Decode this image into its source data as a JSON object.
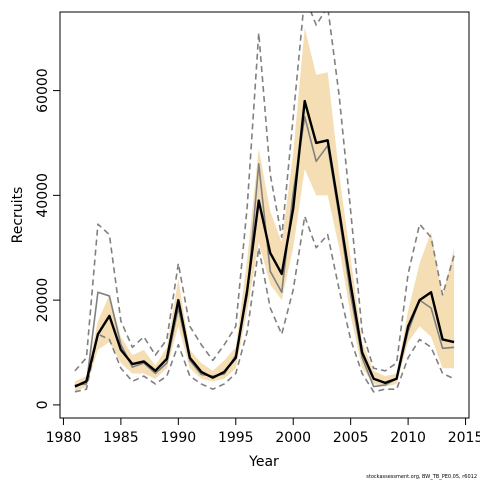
{
  "chart_data": {
    "type": "line",
    "xlabel": "Year",
    "ylabel": "Recruits",
    "credit": "stockassessment.org, BW_TB_PE0.05, r6012",
    "xlim": [
      1981,
      2015
    ],
    "ylim": [
      0,
      75000
    ],
    "xticks": [
      1980,
      1985,
      1990,
      1995,
      2000,
      2005,
      2010,
      2015
    ],
    "yticks": [
      0,
      20000,
      40000,
      60000
    ],
    "grid": false,
    "colors": {
      "ribbon": "#f5deb3",
      "estimate": "#000000",
      "comparison": "#808080",
      "interval": "#808080"
    },
    "x": [
      1981,
      1982,
      1983,
      1984,
      1985,
      1986,
      1987,
      1988,
      1989,
      1990,
      1991,
      1992,
      1993,
      1994,
      1995,
      1996,
      1997,
      1998,
      1999,
      2000,
      2001,
      2002,
      2003,
      2004,
      2005,
      2006,
      2007,
      2008,
      2009,
      2010,
      2011,
      2012,
      2013,
      2014
    ],
    "series": [
      {
        "role": "ribbon",
        "upper": [
          4500,
          5500,
          16000,
          21000,
          13000,
          9500,
          10500,
          7500,
          11000,
          24000,
          10500,
          8000,
          6500,
          8500,
          11000,
          28000,
          49000,
          37000,
          31000,
          48000,
          72000,
          63000,
          63500,
          44000,
          28000,
          12000,
          6500,
          5500,
          6000,
          18000,
          27000,
          33000,
          20500,
          30000
        ],
        "lower": [
          2500,
          3500,
          10500,
          12000,
          8000,
          6000,
          6000,
          5000,
          7000,
          15000,
          7000,
          5000,
          4500,
          5000,
          7000,
          18000,
          31000,
          23000,
          20000,
          30000,
          45000,
          40000,
          40000,
          30000,
          17000,
          7000,
          4000,
          3500,
          4000,
          12000,
          15000,
          13000,
          7000,
          7000
        ]
      },
      {
        "role": "estimate",
        "values": [
          3500,
          4500,
          13500,
          17000,
          10500,
          7800,
          8300,
          6500,
          8800,
          20000,
          9000,
          6300,
          5200,
          6300,
          9000,
          22000,
          39000,
          29000,
          25000,
          37500,
          58000,
          50000,
          50500,
          37000,
          23000,
          10000,
          5000,
          4200,
          5000,
          15000,
          20000,
          21500,
          12500,
          12000
        ]
      },
      {
        "role": "comparison",
        "values": [
          3800,
          4000,
          21500,
          20800,
          11500,
          7200,
          8000,
          6000,
          8000,
          18500,
          8500,
          5800,
          5500,
          5900,
          9500,
          21000,
          46000,
          25500,
          21500,
          40500,
          55000,
          46500,
          49500,
          36000,
          21000,
          9000,
          3500,
          3800,
          5000,
          14000,
          20000,
          18500,
          10800,
          11000
        ]
      },
      {
        "role": "interval-upper",
        "values": [
          6500,
          9000,
          34500,
          32500,
          16000,
          11000,
          13000,
          9500,
          12500,
          27000,
          15000,
          11500,
          8500,
          11500,
          15000,
          38000,
          71000,
          44000,
          32000,
          55000,
          78000,
          72500,
          76000,
          59000,
          37000,
          14000,
          7000,
          6500,
          8000,
          25000,
          34500,
          32000,
          21000,
          28500
        ]
      },
      {
        "role": "interval-lower",
        "values": [
          2500,
          3000,
          13500,
          12500,
          7000,
          4500,
          5500,
          4000,
          5500,
          11500,
          5500,
          4000,
          3000,
          4000,
          6000,
          14000,
          30000,
          18500,
          13500,
          22000,
          36000,
          30000,
          32500,
          22000,
          12500,
          6000,
          2500,
          3000,
          3000,
          9000,
          12500,
          11000,
          6000,
          5000
        ]
      }
    ]
  }
}
